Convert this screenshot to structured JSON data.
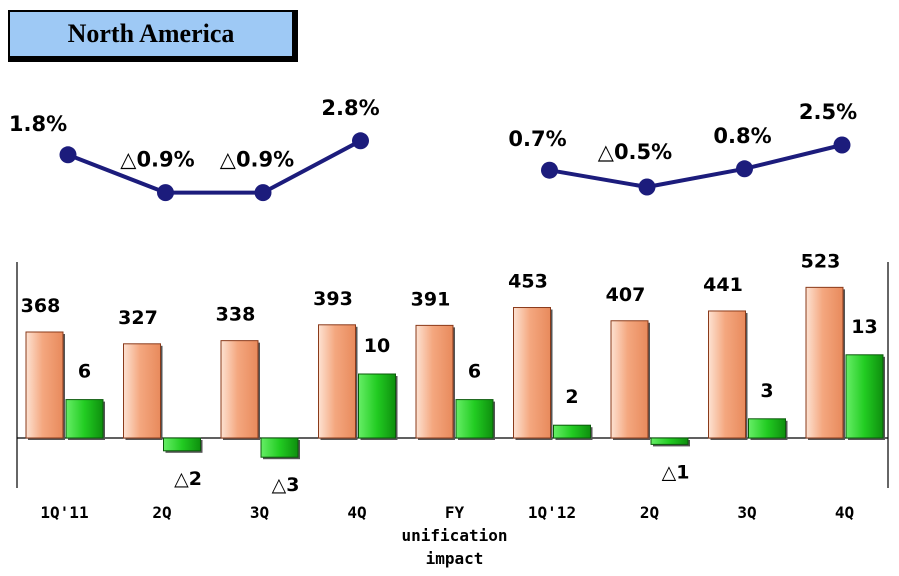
{
  "title": "North America",
  "colors": {
    "title_bg": "#9ec9f5",
    "bar_orange": "#f4a77f",
    "bar_green": "#22cc22",
    "line": "#1c1c7c"
  },
  "chart_data": {
    "type": "bar",
    "categories": [
      "1Q'11",
      "2Q",
      "3Q",
      "4Q",
      "FY\nunification\nimpact",
      "1Q'12",
      "2Q",
      "3Q",
      "4Q"
    ],
    "series": [
      {
        "values": [
          368,
          327,
          338,
          393,
          391,
          453,
          407,
          441,
          523
        ]
      },
      {
        "values": [
          6,
          -2,
          -3,
          10,
          6,
          2,
          -1,
          3,
          13
        ],
        "labels": [
          "6",
          "△2",
          "△3",
          "10",
          "6",
          "2",
          "△1",
          "3",
          "13"
        ]
      }
    ],
    "line_groups": [
      {
        "categories": [
          "1Q'11",
          "2Q",
          "3Q",
          "4Q"
        ],
        "values": [
          1.8,
          -0.9,
          -0.9,
          2.8
        ],
        "labels": [
          "1.8%",
          "△0.9%",
          "△0.9%",
          "2.8%"
        ]
      },
      {
        "categories": [
          "1Q'12",
          "2Q",
          "3Q",
          "4Q"
        ],
        "values": [
          0.7,
          -0.5,
          0.8,
          2.5
        ],
        "labels": [
          "0.7%",
          "△0.5%",
          "0.8%",
          "2.5%"
        ]
      }
    ]
  }
}
